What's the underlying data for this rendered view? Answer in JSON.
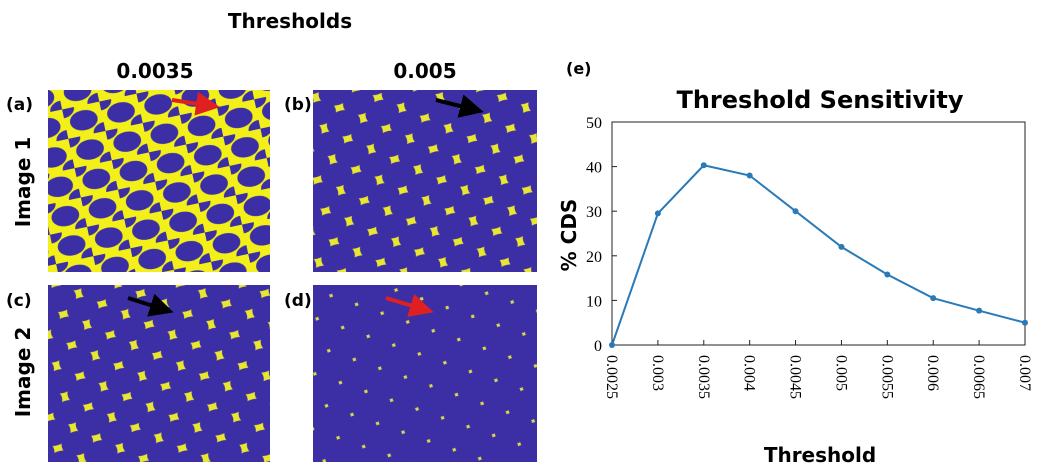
{
  "figure": {
    "title": "Thresholds",
    "columns": [
      "0.0035",
      "0.005"
    ],
    "rows": [
      "Image 1",
      "Image 2"
    ],
    "panels": [
      "(a)",
      "(b)",
      "(c)",
      "(d)"
    ]
  },
  "chart_data": {
    "type": "line",
    "panel_label": "(e)",
    "title": "Threshold Sensitivity",
    "x_label": "Threshold",
    "y_label": "% CDS",
    "x": [
      0.0025,
      0.003,
      0.0035,
      0.004,
      0.0045,
      0.005,
      0.0055,
      0.006,
      0.0065,
      0.007
    ],
    "series": [
      {
        "color": "#2a7ab8",
        "values": [
          0,
          29.5,
          40.3,
          38,
          30,
          22,
          15.8,
          10.5,
          7.7,
          5
        ]
      }
    ],
    "xlim": [
      0.0025,
      0.007
    ],
    "ylim": [
      0,
      50
    ],
    "xticks": [
      0.0025,
      0.003,
      0.0035,
      0.004,
      0.0045,
      0.005,
      0.0055,
      0.006,
      0.0065,
      0.007
    ],
    "yticks": [
      0,
      10,
      20,
      30,
      40,
      50
    ]
  }
}
